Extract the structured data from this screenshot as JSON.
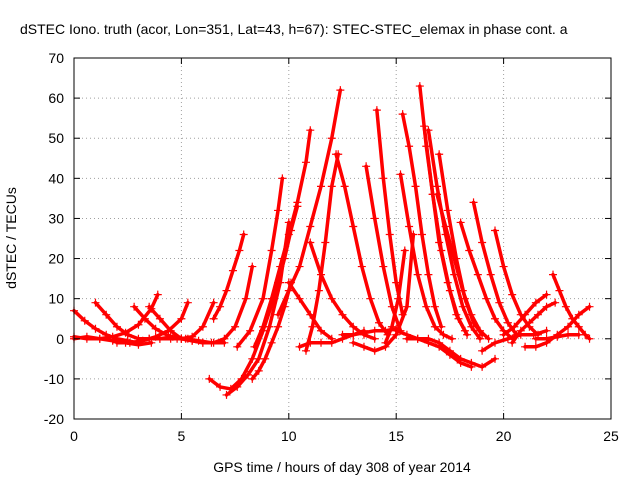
{
  "chart_data": {
    "type": "scatter",
    "title": "dSTEC Iono. truth (acor, Lon=351, Lat=43, h=67): STEC-STEC_elemax in phase cont. a",
    "xlabel": "GPS time / hours of day 308 of year 2014",
    "ylabel": "dSTEC  / TECUs",
    "xlim": [
      0,
      25
    ],
    "ylim": [
      -20,
      70
    ],
    "x_ticks": [
      0,
      5,
      10,
      15,
      20,
      25
    ],
    "y_ticks": [
      -20,
      -10,
      0,
      10,
      20,
      30,
      40,
      50,
      60,
      70
    ],
    "grid": true,
    "legend": "none",
    "marker": "plus",
    "color": "#ff0000",
    "series": [
      {
        "x": [
          0.0,
          0.5,
          1.0,
          1.5,
          2.0,
          2.5,
          3.0
        ],
        "y": [
          7,
          4.5,
          2.5,
          1,
          0,
          -0.5,
          -1
        ]
      },
      {
        "x": [
          0.0,
          0.6,
          1.2,
          1.8,
          2.4,
          3.0,
          3.6,
          3.9
        ],
        "y": [
          0.5,
          0,
          0,
          0.5,
          1.5,
          3.5,
          7.5,
          11
        ]
      },
      {
        "x": [
          1.0,
          1.5,
          2.0,
          2.5,
          3.0,
          3.5
        ],
        "y": [
          9,
          6,
          3,
          1,
          0,
          0
        ]
      },
      {
        "x": [
          0.0,
          0.6,
          1.2,
          1.8,
          2.4,
          3.0,
          3.6
        ],
        "y": [
          0,
          0.5,
          0,
          -0.5,
          -1,
          -1.5,
          -1
        ]
      },
      {
        "x": [
          2.0,
          2.6,
          3.2,
          3.8,
          4.4,
          5.0,
          5.3
        ],
        "y": [
          -1,
          -1,
          -0.5,
          0.5,
          2,
          5,
          9
        ]
      },
      {
        "x": [
          2.8,
          3.3,
          3.8,
          4.3,
          4.8,
          5.3
        ],
        "y": [
          8,
          5,
          2.5,
          1,
          0,
          0
        ]
      },
      {
        "x": [
          3.5,
          4.0,
          4.5,
          5.0,
          5.5,
          6.0
        ],
        "y": [
          8,
          5,
          2,
          0,
          -0.5,
          -1
        ]
      },
      {
        "x": [
          3.5,
          4.0,
          4.5,
          5.0,
          5.5,
          6.0,
          6.5
        ],
        "y": [
          0,
          0,
          0,
          0,
          0.5,
          3,
          9
        ]
      },
      {
        "x": [
          4.0,
          4.6,
          5.2,
          5.8,
          6.4,
          7.0
        ],
        "y": [
          0,
          0.5,
          0,
          -0.5,
          -1,
          -1
        ]
      },
      {
        "x": [
          5.0,
          5.5,
          6.0,
          6.5,
          7.0,
          7.5,
          8.0,
          8.3
        ],
        "y": [
          0,
          -0.5,
          -1,
          -1,
          0,
          3,
          10,
          18
        ]
      },
      {
        "x": [
          6.5,
          6.8,
          7.1,
          7.4,
          7.7,
          7.9
        ],
        "y": [
          5,
          8,
          12,
          17,
          22,
          26
        ]
      },
      {
        "x": [
          6.3,
          6.8,
          7.3,
          7.8,
          8.3,
          8.8,
          9.3,
          9.7
        ],
        "y": [
          -10,
          -12,
          -12.5,
          -10,
          -5,
          2,
          10,
          20
        ]
      },
      {
        "x": [
          7.1,
          7.6,
          8.1,
          8.6,
          9.1,
          9.6,
          10.0
        ],
        "y": [
          -14,
          -12,
          -9,
          -5,
          3,
          14,
          29
        ]
      },
      {
        "x": [
          7.6,
          8.2,
          8.8,
          9.2,
          9.5,
          9.7
        ],
        "y": [
          -2,
          2,
          10,
          22,
          32,
          40
        ]
      },
      {
        "x": [
          8.4,
          8.8,
          9.2,
          9.6,
          10.0,
          10.4,
          10.8,
          11.0
        ],
        "y": [
          -2,
          3,
          10,
          18,
          26,
          34,
          44,
          52
        ]
      },
      {
        "x": [
          9.2,
          9.5,
          9.8,
          10.1,
          10.4
        ],
        "y": [
          10,
          14,
          20,
          27,
          33
        ]
      },
      {
        "x": [
          8.3,
          8.6,
          8.9,
          9.2,
          9.5,
          9.8,
          10.1
        ],
        "y": [
          -10,
          -8,
          -5,
          -1,
          3,
          8,
          14
        ]
      },
      {
        "x": [
          9.5,
          10.0,
          10.5,
          11.0,
          11.5,
          12.0,
          12.4
        ],
        "y": [
          6,
          12,
          18,
          28,
          38,
          50,
          62
        ]
      },
      {
        "x": [
          10.8,
          11.1,
          11.4,
          11.7,
          12.0,
          12.3
        ],
        "y": [
          -3,
          3,
          12,
          24,
          38,
          46
        ]
      },
      {
        "x": [
          12.2,
          12.6,
          13.0,
          13.4,
          13.8,
          14.2,
          14.6
        ],
        "y": [
          46,
          38,
          28,
          18,
          10,
          4,
          1
        ]
      },
      {
        "x": [
          10.0,
          10.5,
          11.0,
          11.5,
          12.0
        ],
        "y": [
          14,
          10,
          6,
          2,
          0
        ]
      },
      {
        "x": [
          11.0,
          11.5,
          12.0,
          12.5,
          13.0,
          13.5,
          14.0
        ],
        "y": [
          24,
          16,
          10,
          6,
          3,
          1,
          0
        ]
      },
      {
        "x": [
          10.5,
          11.0,
          11.5,
          12.0,
          12.5,
          13.0,
          13.5
        ],
        "y": [
          -2,
          -1,
          -1,
          -1,
          0,
          1,
          2
        ]
      },
      {
        "x": [
          12.5,
          13.0,
          13.5,
          14.0,
          14.5,
          15.0
        ],
        "y": [
          1,
          1,
          1.5,
          2,
          2,
          2.5
        ]
      },
      {
        "x": [
          13.6,
          14.0,
          14.4,
          14.8,
          15.2
        ],
        "y": [
          43,
          30,
          18,
          8,
          2
        ]
      },
      {
        "x": [
          14.1,
          14.4,
          14.7,
          15.0,
          15.3
        ],
        "y": [
          57,
          40,
          26,
          14,
          6
        ]
      },
      {
        "x": [
          13.0,
          13.5,
          14.0,
          14.5,
          15.0,
          15.5,
          15.8
        ],
        "y": [
          -1,
          -2,
          -3,
          -2,
          1,
          8,
          26
        ]
      },
      {
        "x": [
          14.5,
          14.8,
          15.1,
          15.4
        ],
        "y": [
          -1,
          3,
          10,
          22
        ]
      },
      {
        "x": [
          15.2,
          15.6,
          16.0,
          16.4,
          16.8,
          17.2,
          17.6
        ],
        "y": [
          41,
          28,
          16,
          8,
          3,
          1,
          0
        ]
      },
      {
        "x": [
          15.3,
          15.6,
          15.9,
          16.2,
          16.5,
          16.8,
          17.1
        ],
        "y": [
          56,
          48,
          38,
          26,
          16,
          8,
          3
        ]
      },
      {
        "x": [
          16.1,
          16.4,
          16.7,
          17.0,
          17.4,
          17.8,
          18.2
        ],
        "y": [
          63,
          48,
          36,
          24,
          14,
          6,
          2
        ]
      },
      {
        "x": [
          16.3,
          16.7,
          17.1,
          17.5,
          17.9,
          18.3
        ],
        "y": [
          53,
          36,
          22,
          12,
          5,
          1
        ]
      },
      {
        "x": [
          16.5,
          16.9,
          17.3,
          17.7,
          18.1,
          18.5,
          18.9
        ],
        "y": [
          52,
          38,
          26,
          16,
          8,
          3,
          0
        ]
      },
      {
        "x": [
          16.9,
          17.3,
          17.7,
          18.1,
          18.5,
          18.9,
          19.3
        ],
        "y": [
          36,
          28,
          20,
          12,
          6,
          2,
          0
        ]
      },
      {
        "x": [
          17.0,
          17.4,
          17.8,
          18.2,
          18.6,
          19.0
        ],
        "y": [
          46,
          32,
          20,
          10,
          4,
          1
        ]
      },
      {
        "x": [
          15.5,
          16.0,
          16.5,
          17.0,
          17.5,
          18.0,
          18.5,
          19.0,
          19.6
        ],
        "y": [
          0,
          0,
          0,
          -1,
          -3,
          -5,
          -6,
          -7,
          -5
        ]
      },
      {
        "x": [
          15.0,
          15.5,
          16.0,
          16.5,
          17.0,
          17.5,
          18.0,
          18.5
        ],
        "y": [
          2,
          1,
          0,
          -1,
          -2,
          -4,
          -6,
          -7
        ]
      },
      {
        "x": [
          18.0,
          18.4,
          18.8,
          19.2,
          19.6,
          20.0,
          20.4
        ],
        "y": [
          29,
          22,
          16,
          10,
          5,
          2,
          0
        ]
      },
      {
        "x": [
          18.6,
          19.0,
          19.4,
          19.8,
          20.2,
          20.6
        ],
        "y": [
          34,
          24,
          16,
          9,
          4,
          1
        ]
      },
      {
        "x": [
          19.6,
          20.0,
          20.4,
          20.8,
          21.2,
          21.6
        ],
        "y": [
          27,
          18,
          11,
          6,
          3,
          1
        ]
      },
      {
        "x": [
          19.0,
          19.6,
          20.2,
          20.8,
          21.4,
          22.0
        ],
        "y": [
          -3,
          -1,
          0,
          1,
          1,
          2
        ]
      },
      {
        "x": [
          20.0,
          20.5,
          21.0,
          21.5,
          22.0
        ],
        "y": [
          1,
          3,
          6,
          9,
          11
        ]
      },
      {
        "x": [
          20.4,
          20.8,
          21.2,
          21.6,
          22.0,
          22.4
        ],
        "y": [
          -1,
          2,
          4,
          6,
          8,
          9
        ]
      },
      {
        "x": [
          21.0,
          21.5,
          22.0,
          22.5,
          23.0,
          23.5,
          24.0
        ],
        "y": [
          -2,
          -2,
          -1,
          1,
          3,
          6,
          8
        ]
      },
      {
        "x": [
          22.3,
          22.6,
          22.9,
          23.2,
          23.5,
          23.8,
          24.0
        ],
        "y": [
          16,
          12,
          8,
          5,
          3,
          1,
          0
        ]
      },
      {
        "x": [
          21.5,
          22.0,
          22.5,
          23.0,
          23.5
        ],
        "y": [
          0,
          0,
          0.5,
          1,
          1
        ]
      }
    ]
  }
}
